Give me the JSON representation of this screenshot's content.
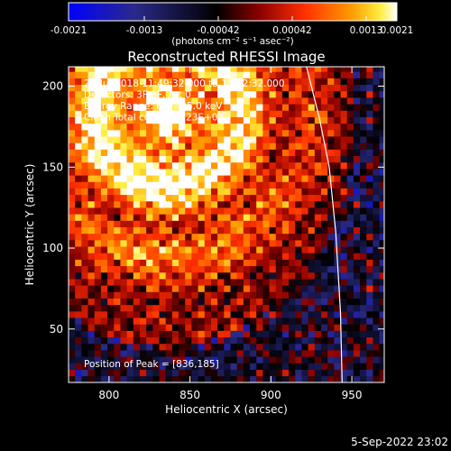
{
  "chart_data": {
    "type": "heatmap",
    "title": "Reconstructed RHESSI Image",
    "xlabel": "Heliocentric X (arcsec)",
    "ylabel": "Heliocentric Y (arcsec)",
    "xlim": [
      775,
      970
    ],
    "ylim": [
      17,
      212
    ],
    "x_ticks": [
      800,
      850,
      900,
      950
    ],
    "y_ticks": [
      50,
      100,
      150,
      200
    ],
    "x_tick_labels": [
      "800",
      "850",
      "900",
      "950"
    ],
    "y_tick_labels": [
      "50",
      "100",
      "150",
      "200"
    ],
    "colorbar": {
      "range": [
        -0.0021,
        0.0021
      ],
      "tick_labels": [
        "-0.0021",
        "-0.0013",
        "-0.00042",
        "0.00042",
        "0.0013",
        "0.0021"
      ],
      "unit_label": "(photons cm⁻² s⁻¹ asec⁻²)",
      "colors": [
        "#0000ff",
        "#1a1a6a",
        "#000000",
        "#8b0000",
        "#ff3000",
        "#ff9a00",
        "#ffee40",
        "#ffffff"
      ]
    },
    "annotations": [
      "22-Jul-2018 11:49:32.000 to 11:52:32.000",
      "Detectors: 3F 8F, Att 0",
      "Energy Range: 6.0 - 25.0 keV",
      "Clean    Total counts: 3.23E+03"
    ],
    "peak_label": "Position of Peak = [836,185]",
    "peak": [
      836,
      185
    ],
    "limb_color": "#ffffff",
    "pixel_size_arcsec": 4
  },
  "footer": {
    "timestamp": "5-Sep-2022 23:02"
  }
}
